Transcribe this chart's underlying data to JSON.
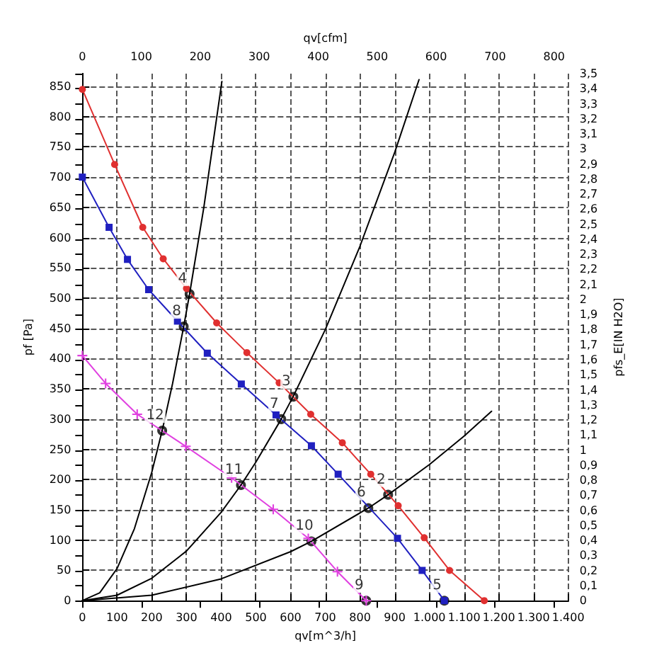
{
  "chart_data": {
    "type": "line",
    "xlabel": "qv[m^3/h]",
    "x2label": "qv[cfm]",
    "ylabel": "pf [Pa]",
    "y2label": "pfs_E[IN H2O]",
    "xlim": [
      0,
      1400
    ],
    "xticks": [
      0,
      100,
      200,
      300,
      400,
      500,
      600,
      700,
      800,
      900,
      {
        "value": 1000,
        "label": "1.000"
      },
      {
        "value": 1100,
        "label": "1.100"
      },
      {
        "value": 1200,
        "label": "1.200"
      },
      {
        "value": 1300,
        "label": "1.300"
      },
      {
        "value": 1400,
        "label": "1.400"
      }
    ],
    "x2lim": [
      0,
      824
    ],
    "x2ticks": [
      0,
      100,
      200,
      300,
      400,
      500,
      600,
      700,
      800
    ],
    "ylim": [
      0,
      871
    ],
    "yticks": [
      0,
      50,
      100,
      150,
      200,
      250,
      300,
      350,
      400,
      450,
      500,
      550,
      600,
      650,
      700,
      750,
      800,
      850
    ],
    "y2lim": [
      0,
      3.5
    ],
    "y2ticks": [
      0,
      {
        "value": 0.1,
        "label": "0,1"
      },
      {
        "value": 0.2,
        "label": "0,2"
      },
      {
        "value": 0.3,
        "label": "0,3"
      },
      {
        "value": 0.4,
        "label": "0,4"
      },
      {
        "value": 0.5,
        "label": "0,5"
      },
      {
        "value": 0.6,
        "label": "0,6"
      },
      {
        "value": 0.7,
        "label": "0,7"
      },
      {
        "value": 0.8,
        "label": "0,8"
      },
      {
        "value": 0.9,
        "label": "0,9"
      },
      1,
      {
        "value": 1.1,
        "label": "1,1"
      },
      {
        "value": 1.2,
        "label": "1,2"
      },
      {
        "value": 1.3,
        "label": "1,3"
      },
      {
        "value": 1.4,
        "label": "1,4"
      },
      {
        "value": 1.5,
        "label": "1,5"
      },
      {
        "value": 1.6,
        "label": "1,6"
      },
      {
        "value": 1.7,
        "label": "1,7"
      },
      {
        "value": 1.8,
        "label": "1,8"
      },
      {
        "value": 1.9,
        "label": "1,9"
      },
      2,
      {
        "value": 2.1,
        "label": "2,1"
      },
      {
        "value": 2.2,
        "label": "2,2"
      },
      {
        "value": 2.3,
        "label": "2,3"
      },
      {
        "value": 2.4,
        "label": "2,4"
      },
      {
        "value": 2.5,
        "label": "2,5"
      },
      {
        "value": 2.6,
        "label": "2,6"
      },
      {
        "value": 2.7,
        "label": "2,7"
      },
      {
        "value": 2.8,
        "label": "2,8"
      },
      {
        "value": 2.9,
        "label": "2,9"
      },
      3,
      {
        "value": 3.1,
        "label": "3,1"
      },
      {
        "value": 3.2,
        "label": "3,2"
      },
      {
        "value": 3.3,
        "label": "3,3"
      },
      {
        "value": 3.4,
        "label": "3,4"
      },
      {
        "value": 3.5,
        "label": "3,5"
      }
    ],
    "grid": true,
    "line_style": "solid",
    "series": [
      {
        "color": "#e03030",
        "marker": "circle",
        "x": [
          0,
          93,
          174,
          233,
          300,
          387,
          474,
          567,
          658,
          749,
          831,
          910,
          985,
          1058,
          1158
        ],
        "values": [
          845,
          721,
          617,
          565,
          516,
          459,
          410,
          360,
          308,
          261,
          209,
          157,
          104,
          50,
          0
        ]
      },
      {
        "color": "#2020c0",
        "marker": "square",
        "x": [
          0,
          77,
          130,
          191,
          274,
          360,
          458,
          558,
          660,
          737,
          908,
          979,
          1043
        ],
        "values": [
          700,
          617,
          564,
          514,
          462,
          409,
          358,
          307,
          256,
          209,
          103,
          50,
          0
        ]
      },
      {
        "color": "#e040e0",
        "marker": "cross",
        "x": [
          0,
          67,
          158,
          298,
          430,
          550,
          651,
          735,
          818
        ],
        "values": [
          405,
          359,
          308,
          255,
          203,
          151,
          103,
          48,
          0
        ]
      },
      {
        "color": "#000000",
        "marker": "none",
        "x": [
          0,
          50,
          100,
          150,
          200,
          230,
          260,
          292,
          309,
          350,
          402
        ],
        "values": [
          0,
          13,
          53,
          119,
          212,
          281,
          359,
          453,
          507,
          650,
          858
        ]
      },
      {
        "color": "#000000",
        "marker": "none",
        "x": [
          0,
          100,
          200,
          300,
          400,
          457,
          500,
          573,
          608,
          700,
          800,
          900,
          970
        ],
        "values": [
          0,
          9,
          37,
          82,
          146,
          191,
          229,
          300,
          338,
          448,
          586,
          741,
          861
        ]
      },
      {
        "color": "#000000",
        "marker": "none",
        "x": [
          0,
          200,
          400,
          600,
          660,
          824,
          881,
          1000,
          1100,
          1179
        ],
        "values": [
          0,
          9,
          36,
          81,
          98,
          153,
          175,
          225,
          272,
          313
        ]
      }
    ],
    "annotations": [
      {
        "text": "2",
        "x": 881,
        "y": 175
      },
      {
        "text": "3",
        "x": 608,
        "y": 337
      },
      {
        "text": "4",
        "x": 309,
        "y": 507
      },
      {
        "text": "5",
        "x": 1043,
        "y": 0
      },
      {
        "text": "6",
        "x": 824,
        "y": 153
      },
      {
        "text": "7",
        "x": 573,
        "y": 300
      },
      {
        "text": "8",
        "x": 292,
        "y": 453
      },
      {
        "text": "9",
        "x": 818,
        "y": 0
      },
      {
        "text": "10",
        "x": 660,
        "y": 98
      },
      {
        "text": "11",
        "x": 457,
        "y": 191
      },
      {
        "text": "12",
        "x": 230,
        "y": 281
      }
    ]
  }
}
